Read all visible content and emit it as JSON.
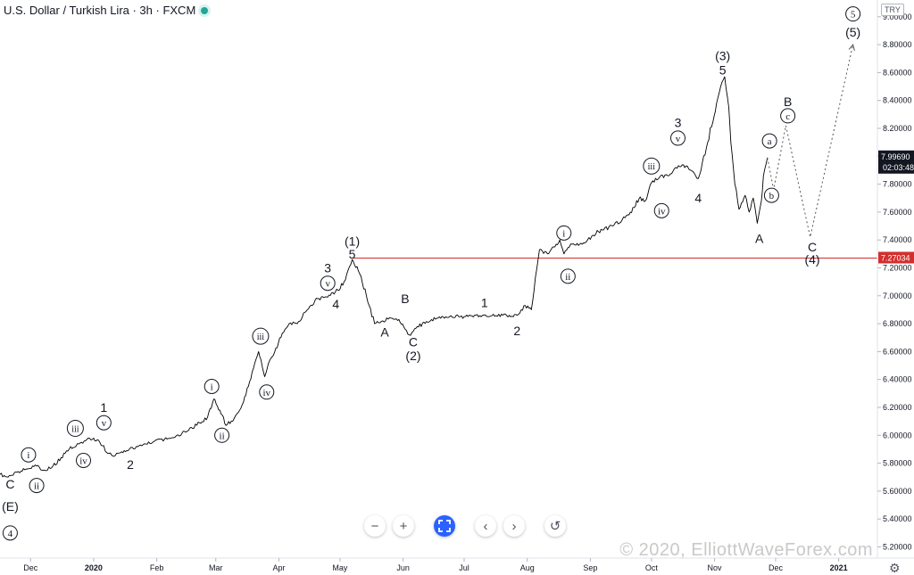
{
  "header": {
    "title": "U.S. Dollar / Turkish Lira · 3h · FXCM",
    "currency": "TRY"
  },
  "watermark": "© 2020, ElliottWaveForex.com",
  "toolbar": {
    "zoom_out": "−",
    "zoom_in": "+",
    "prev": "‹",
    "next": "›",
    "reset": "↺"
  },
  "settings_icon": "⚙",
  "colors": {
    "price_line": "#000000",
    "horizontal_level": "#d32f2f",
    "current_price_bg": "#131722",
    "level_badge_bg": "#d32f2f",
    "toolbar_accent": "#2962ff"
  },
  "chart_data": {
    "type": "line",
    "symbol": "USD/TRY",
    "x_axis": {
      "labels": [
        "Dec",
        "2020",
        "Feb",
        "Mar",
        "Apr",
        "May",
        "Jun",
        "Jul",
        "Aug",
        "Sep",
        "Oct",
        "Nov",
        "Dec",
        "2021"
      ],
      "positions": [
        "2019-12-01",
        "2020-01-01",
        "2020-02-01",
        "2020-03-01",
        "2020-04-01",
        "2020-05-01",
        "2020-06-01",
        "2020-07-01",
        "2020-08-01",
        "2020-09-01",
        "2020-10-01",
        "2020-11-01",
        "2020-12-01",
        "2021-01-01"
      ]
    },
    "y_axis": {
      "ticks": [
        "5.20000",
        "5.40000",
        "5.60000",
        "5.80000",
        "6.00000",
        "6.20000",
        "6.40000",
        "6.60000",
        "6.80000",
        "7.00000",
        "7.20000",
        "7.40000",
        "7.60000",
        "7.80000",
        "8.00000",
        "8.20000",
        "8.40000",
        "8.60000",
        "8.80000",
        "9.00000"
      ],
      "range": [
        5.12,
        9.12
      ]
    },
    "current_price": {
      "value": 7.9969,
      "label": "7.99690",
      "countdown": "02:03:48"
    },
    "horizontal_level": {
      "value": 7.27034,
      "label": "7.27034"
    },
    "price_series": [
      [
        "2019-11-16",
        5.72
      ],
      [
        "2019-11-20",
        5.7
      ],
      [
        "2019-11-25",
        5.74
      ],
      [
        "2019-11-30",
        5.76
      ],
      [
        "2019-12-04",
        5.78
      ],
      [
        "2019-12-08",
        5.75
      ],
      [
        "2019-12-12",
        5.78
      ],
      [
        "2019-12-16",
        5.84
      ],
      [
        "2019-12-20",
        5.9
      ],
      [
        "2019-12-24",
        5.94
      ],
      [
        "2019-12-28",
        5.96
      ],
      [
        "2020-01-01",
        5.98
      ],
      [
        "2020-01-04",
        5.95
      ],
      [
        "2020-01-08",
        5.87
      ],
      [
        "2020-01-11",
        5.85
      ],
      [
        "2020-01-16",
        5.89
      ],
      [
        "2020-01-22",
        5.92
      ],
      [
        "2020-01-30",
        5.95
      ],
      [
        "2020-02-08",
        5.98
      ],
      [
        "2020-02-16",
        6.03
      ],
      [
        "2020-02-22",
        6.09
      ],
      [
        "2020-02-26",
        6.13
      ],
      [
        "2020-02-29",
        6.26
      ],
      [
        "2020-03-03",
        6.18
      ],
      [
        "2020-03-06",
        6.07
      ],
      [
        "2020-03-10",
        6.12
      ],
      [
        "2020-03-14",
        6.22
      ],
      [
        "2020-03-17",
        6.35
      ],
      [
        "2020-03-22",
        6.6
      ],
      [
        "2020-03-25",
        6.42
      ],
      [
        "2020-03-28",
        6.55
      ],
      [
        "2020-04-02",
        6.7
      ],
      [
        "2020-04-06",
        6.8
      ],
      [
        "2020-04-10",
        6.8
      ],
      [
        "2020-04-15",
        6.9
      ],
      [
        "2020-04-20",
        6.98
      ],
      [
        "2020-04-25",
        6.99
      ],
      [
        "2020-04-30",
        7.04
      ],
      [
        "2020-05-03",
        7.1
      ],
      [
        "2020-05-07",
        7.26
      ],
      [
        "2020-05-10",
        7.18
      ],
      [
        "2020-05-14",
        7.0
      ],
      [
        "2020-05-18",
        6.8
      ],
      [
        "2020-05-22",
        6.82
      ],
      [
        "2020-05-26",
        6.84
      ],
      [
        "2020-05-30",
        6.83
      ],
      [
        "2020-06-02",
        6.76
      ],
      [
        "2020-06-04",
        6.72
      ],
      [
        "2020-06-08",
        6.78
      ],
      [
        "2020-06-15",
        6.83
      ],
      [
        "2020-06-22",
        6.85
      ],
      [
        "2020-07-01",
        6.85
      ],
      [
        "2020-07-10",
        6.86
      ],
      [
        "2020-07-20",
        6.86
      ],
      [
        "2020-07-27",
        6.86
      ],
      [
        "2020-07-31",
        6.93
      ],
      [
        "2020-08-03",
        6.9
      ],
      [
        "2020-08-05",
        7.13
      ],
      [
        "2020-08-07",
        7.33
      ],
      [
        "2020-08-11",
        7.3
      ],
      [
        "2020-08-14",
        7.35
      ],
      [
        "2020-08-17",
        7.4
      ],
      [
        "2020-08-19",
        7.3
      ],
      [
        "2020-08-23",
        7.37
      ],
      [
        "2020-08-28",
        7.37
      ],
      [
        "2020-09-05",
        7.46
      ],
      [
        "2020-09-12",
        7.5
      ],
      [
        "2020-09-20",
        7.58
      ],
      [
        "2020-09-25",
        7.7
      ],
      [
        "2020-09-28",
        7.68
      ],
      [
        "2020-10-01",
        7.81
      ],
      [
        "2020-10-05",
        7.85
      ],
      [
        "2020-10-09",
        7.86
      ],
      [
        "2020-10-13",
        7.92
      ],
      [
        "2020-10-18",
        7.93
      ],
      [
        "2020-10-22",
        7.88
      ],
      [
        "2020-10-24",
        7.84
      ],
      [
        "2020-10-28",
        8.06
      ],
      [
        "2020-11-02",
        8.38
      ],
      [
        "2020-11-04",
        8.5
      ],
      [
        "2020-11-06",
        8.57
      ],
      [
        "2020-11-08",
        8.35
      ],
      [
        "2020-11-09",
        8.1
      ],
      [
        "2020-11-11",
        7.8
      ],
      [
        "2020-11-13",
        7.62
      ],
      [
        "2020-11-16",
        7.72
      ],
      [
        "2020-11-18",
        7.6
      ],
      [
        "2020-11-20",
        7.7
      ],
      [
        "2020-11-22",
        7.52
      ],
      [
        "2020-11-24",
        7.68
      ],
      [
        "2020-11-25",
        7.86
      ],
      [
        "2020-11-27",
        7.99
      ]
    ],
    "projection": [
      [
        "2020-11-27",
        7.99
      ],
      [
        "2020-11-30",
        7.76
      ],
      [
        "2020-12-06",
        8.22
      ],
      [
        "2020-12-18",
        7.42
      ],
      [
        "2021-01-08",
        8.8
      ]
    ],
    "annotations": [
      {
        "text": "C",
        "date": "2019-11-21",
        "price": 5.65,
        "circled": false
      },
      {
        "text": "(E)",
        "date": "2019-11-21",
        "price": 5.49,
        "circled": false
      },
      {
        "text": "4",
        "date": "2019-11-21",
        "price": 5.3,
        "circled": true
      },
      {
        "text": "i",
        "date": "2019-11-30",
        "price": 5.86,
        "circled": true
      },
      {
        "text": "ii",
        "date": "2019-12-04",
        "price": 5.64,
        "circled": true
      },
      {
        "text": "iii",
        "date": "2019-12-23",
        "price": 6.05,
        "circled": true
      },
      {
        "text": "iv",
        "date": "2019-12-27",
        "price": 5.82,
        "circled": true
      },
      {
        "text": "v",
        "date": "2020-01-06",
        "price": 6.09,
        "circled": true
      },
      {
        "text": "1",
        "date": "2020-01-06",
        "price": 6.2,
        "circled": false
      },
      {
        "text": "2",
        "date": "2020-01-19",
        "price": 5.79,
        "circled": false
      },
      {
        "text": "i",
        "date": "2020-02-28",
        "price": 6.35,
        "circled": true
      },
      {
        "text": "ii",
        "date": "2020-03-04",
        "price": 6.0,
        "circled": true
      },
      {
        "text": "iii",
        "date": "2020-03-23",
        "price": 6.71,
        "circled": true
      },
      {
        "text": "iv",
        "date": "2020-03-26",
        "price": 6.31,
        "circled": true
      },
      {
        "text": "v",
        "date": "2020-04-25",
        "price": 7.09,
        "circled": true
      },
      {
        "text": "3",
        "date": "2020-04-25",
        "price": 7.2,
        "circled": false
      },
      {
        "text": "4",
        "date": "2020-04-29",
        "price": 6.94,
        "circled": false
      },
      {
        "text": "5",
        "date": "2020-05-07",
        "price": 7.3,
        "circled": false
      },
      {
        "text": "(1)",
        "date": "2020-05-07",
        "price": 7.39,
        "circled": false
      },
      {
        "text": "A",
        "date": "2020-05-23",
        "price": 6.74,
        "circled": false
      },
      {
        "text": "B",
        "date": "2020-06-02",
        "price": 6.98,
        "circled": false
      },
      {
        "text": "C",
        "date": "2020-06-06",
        "price": 6.67,
        "circled": false
      },
      {
        "text": "(2)",
        "date": "2020-06-06",
        "price": 6.57,
        "circled": false
      },
      {
        "text": "1",
        "date": "2020-07-11",
        "price": 6.95,
        "circled": false
      },
      {
        "text": "2",
        "date": "2020-07-27",
        "price": 6.75,
        "circled": false
      },
      {
        "text": "i",
        "date": "2020-08-19",
        "price": 7.45,
        "circled": true
      },
      {
        "text": "ii",
        "date": "2020-08-21",
        "price": 7.14,
        "circled": true
      },
      {
        "text": "iii",
        "date": "2020-10-01",
        "price": 7.93,
        "circled": true
      },
      {
        "text": "iv",
        "date": "2020-10-06",
        "price": 7.61,
        "circled": true
      },
      {
        "text": "v",
        "date": "2020-10-14",
        "price": 8.13,
        "circled": true
      },
      {
        "text": "3",
        "date": "2020-10-14",
        "price": 8.24,
        "circled": false
      },
      {
        "text": "4",
        "date": "2020-10-24",
        "price": 7.7,
        "circled": false
      },
      {
        "text": "5",
        "date": "2020-11-05",
        "price": 8.62,
        "circled": false
      },
      {
        "text": "(3)",
        "date": "2020-11-05",
        "price": 8.72,
        "circled": false
      },
      {
        "text": "A",
        "date": "2020-11-23",
        "price": 7.41,
        "circled": false
      },
      {
        "text": "a",
        "date": "2020-11-28",
        "price": 8.11,
        "circled": true
      },
      {
        "text": "b",
        "date": "2020-11-29",
        "price": 7.72,
        "circled": true
      },
      {
        "text": "c",
        "date": "2020-12-07",
        "price": 8.29,
        "circled": true
      },
      {
        "text": "B",
        "date": "2020-12-07",
        "price": 8.39,
        "circled": false
      },
      {
        "text": "C",
        "date": "2020-12-19",
        "price": 7.35,
        "circled": false
      },
      {
        "text": "(4)",
        "date": "2020-12-19",
        "price": 7.26,
        "circled": false
      },
      {
        "text": "5",
        "date": "2021-01-08",
        "price": 9.02,
        "circled": true
      },
      {
        "text": "(5)",
        "date": "2021-01-08",
        "price": 8.89,
        "circled": false
      }
    ]
  }
}
